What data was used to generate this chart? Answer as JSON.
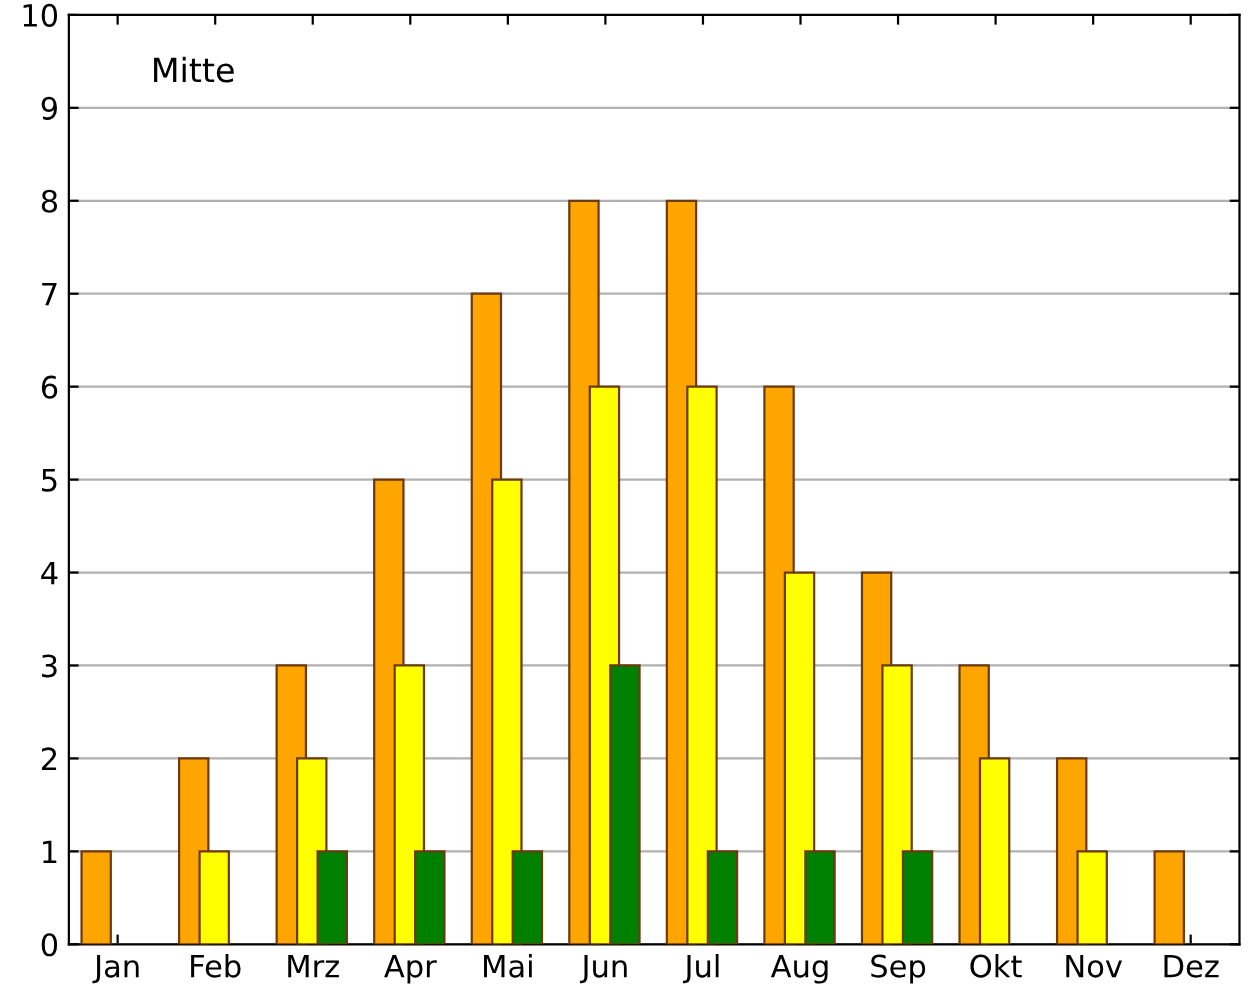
{
  "chart_data": {
    "type": "bar",
    "categories": [
      "Jan",
      "Feb",
      "Mrz",
      "Apr",
      "Mai",
      "Jun",
      "Jul",
      "Aug",
      "Sep",
      "Okt",
      "Nov",
      "Dez"
    ],
    "series": [
      {
        "color": "#ffa500",
        "values": [
          1,
          2,
          3,
          5,
          7,
          8,
          8,
          6,
          4,
          3,
          2,
          1
        ]
      },
      {
        "color": "#ffff00",
        "values": [
          0,
          1,
          2,
          3,
          5,
          6,
          6,
          4,
          3,
          2,
          1,
          0
        ]
      },
      {
        "color": "#008000",
        "values": [
          0,
          0,
          1,
          1,
          1,
          3,
          1,
          1,
          1,
          0,
          0,
          0
        ]
      }
    ],
    "ylim": [
      0,
      10
    ],
    "yticks": [
      0,
      1,
      2,
      3,
      4,
      5,
      6,
      7,
      8,
      9,
      10
    ],
    "grid": "y",
    "annotations": [
      "Mitte"
    ]
  }
}
